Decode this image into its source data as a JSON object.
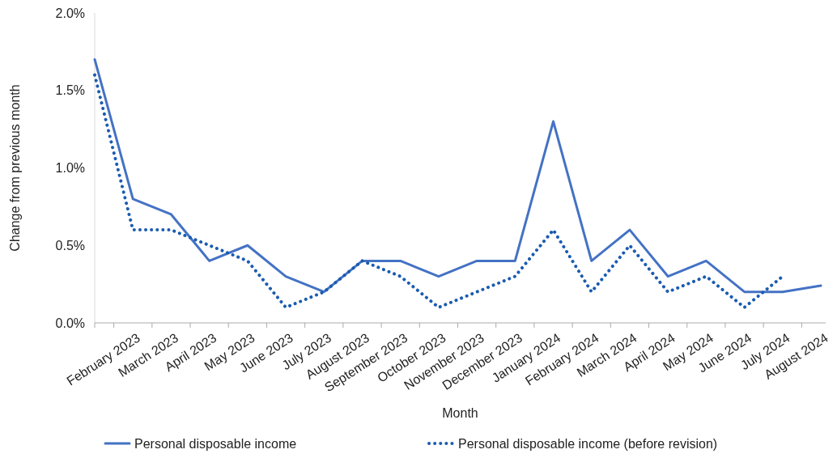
{
  "chart_data": {
    "type": "line",
    "xlabel": "Month",
    "ylabel": "Change from previous month",
    "categories": [
      null,
      "February 2023",
      "March 2023",
      "April 2023",
      "May 2023",
      "June 2023",
      "July 2023",
      "August 2023",
      "September 2023",
      "October 2023",
      "November 2023",
      "December 2023",
      "January 2024",
      "February 2024",
      "March 2024",
      "April 2024",
      "May 2024",
      "June 2024",
      "July 2024",
      "August 2024"
    ],
    "series": [
      {
        "name": "Personal disposable income",
        "color": "#4472c4",
        "line_style": "solid",
        "values": [
          1.7,
          0.8,
          0.7,
          0.4,
          0.5,
          0.3,
          0.2,
          0.4,
          0.4,
          0.3,
          0.4,
          0.4,
          1.3,
          0.4,
          0.6,
          0.3,
          0.4,
          0.2,
          0.2,
          0.24
        ]
      },
      {
        "name": "Personal disposable income (before revision)",
        "color": "#1a5cb0",
        "line_style": "dotted",
        "values": [
          1.6,
          0.6,
          0.6,
          0.5,
          0.4,
          0.1,
          0.2,
          0.4,
          0.3,
          0.1,
          0.2,
          0.3,
          0.6,
          0.2,
          0.5,
          0.2,
          0.3,
          0.1,
          0.3,
          null
        ]
      }
    ],
    "ylim": [
      0,
      2
    ],
    "yticks": [
      {
        "value": 0,
        "label": "0.0%"
      },
      {
        "value": 0.5,
        "label": "0.5%"
      },
      {
        "value": 1,
        "label": "1.0%"
      },
      {
        "value": 1.5,
        "label": "1.5%"
      },
      {
        "value": 2,
        "label": "2.0%"
      }
    ],
    "grid": false,
    "legend": "bottom"
  }
}
